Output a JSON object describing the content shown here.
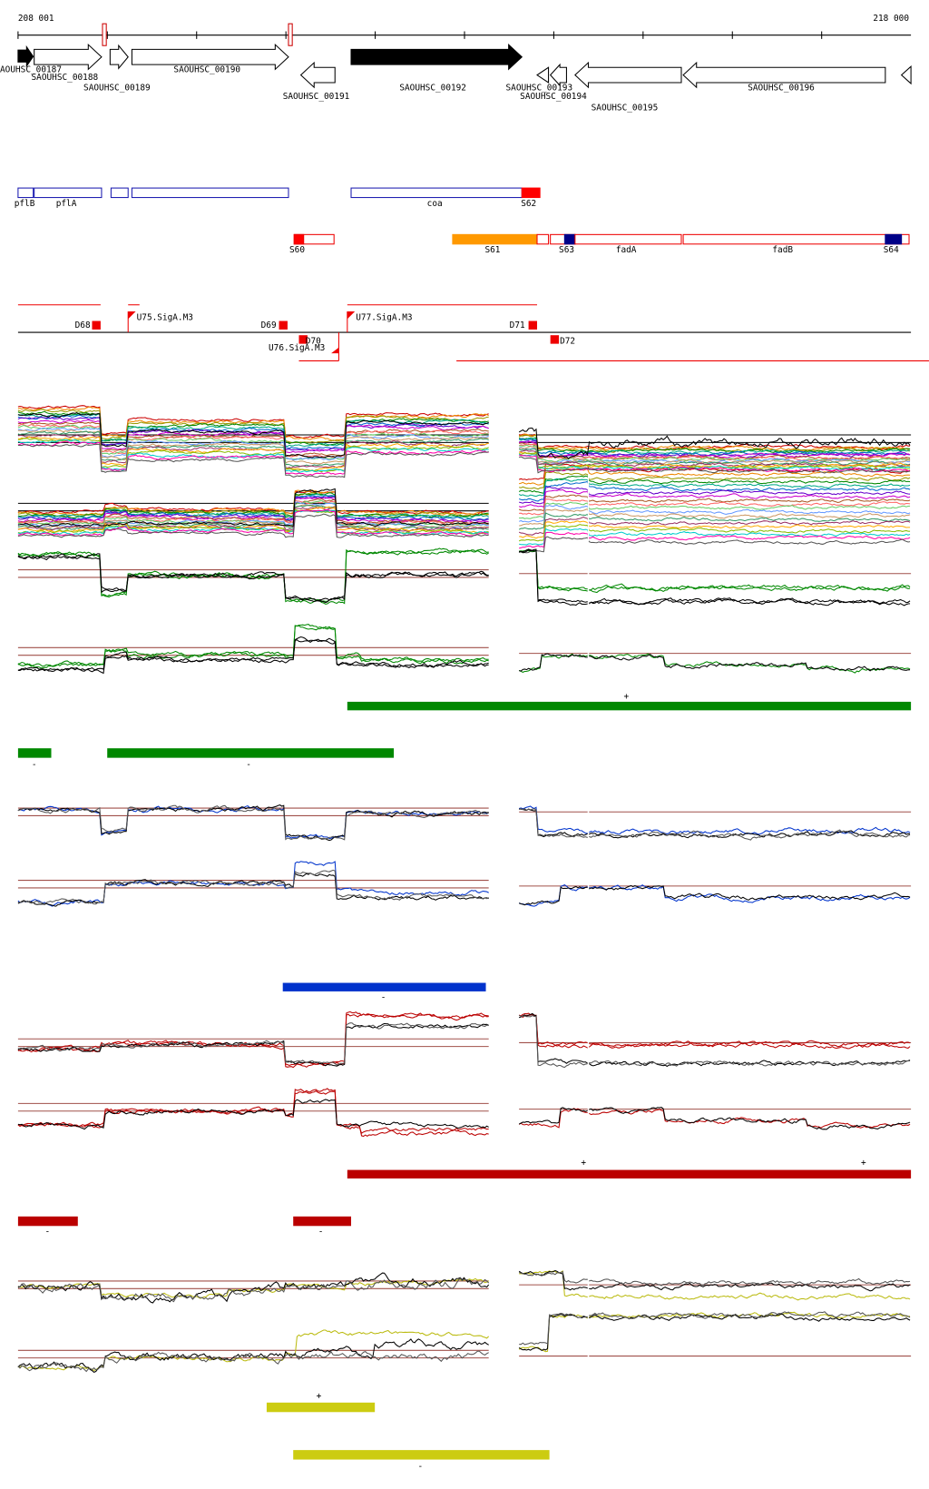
{
  "ruler": {
    "start": "208 001",
    "end": "218 000"
  },
  "genes": [
    "AOUHSC_00187",
    "SAOUHSC_00188",
    "SAOUHSC_00189",
    "SAOUHSC_00190",
    "SAOUHSC_00191",
    "SAOUHSC_00192",
    "SAOUHSC_00193",
    "SAOUHSC_00194",
    "SAOUHSC_00195",
    "SAOUHSC_00196"
  ],
  "cds_features": [
    "pflB",
    "pflA",
    "coa",
    "S62"
  ],
  "rna_features": [
    "S60",
    "S61",
    "S63",
    "fadA",
    "fadB",
    "S64"
  ],
  "promoters": [
    "D68",
    "U75.SigA.M3",
    "D69",
    "D70",
    "U76.SigA.M3",
    "U77.SigA.M3",
    "D71",
    "D72"
  ],
  "segments": {
    "green": [
      "+",
      "-",
      "-"
    ],
    "blue": [
      "-"
    ],
    "red": [
      "+",
      "+",
      "-",
      "-"
    ],
    "yellow": [
      "+",
      "-"
    ]
  }
}
